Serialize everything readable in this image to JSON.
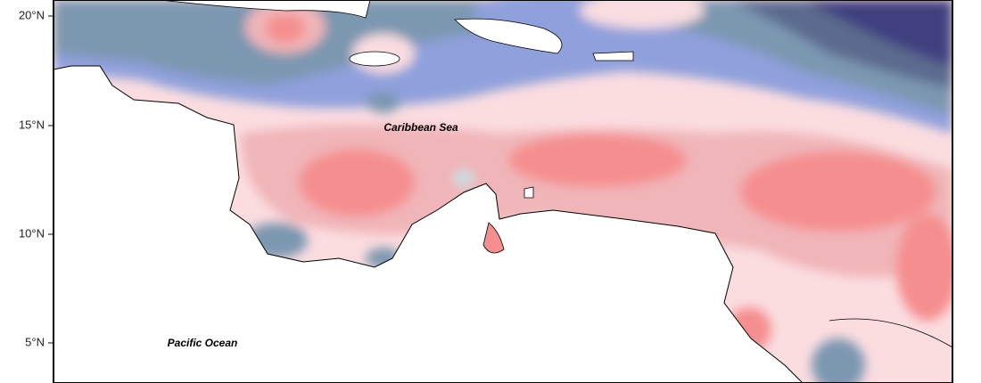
{
  "map": {
    "lat_ticks": [
      "20°N",
      "15°N",
      "10°N",
      "5°N"
    ],
    "labels": [
      "Caribbean Sea",
      "Pacific Ocean"
    ]
  }
}
